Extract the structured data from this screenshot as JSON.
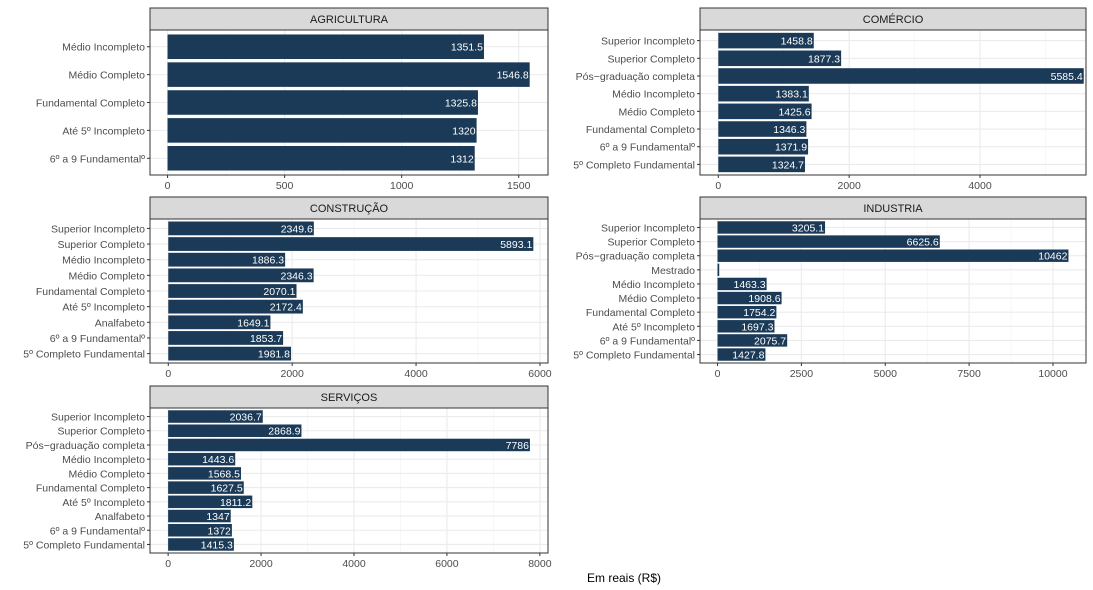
{
  "chart_data": {
    "type": "bar",
    "orientation": "horizontal",
    "xlabel": "Em reais (R$)",
    "ylabel": "",
    "grid": true,
    "colors": {
      "bar": "#1b3a57",
      "strip": "#d9d9d9",
      "panel_border": "#333333",
      "grid_major": "#ebebeb",
      "bar_text": "#ffffff"
    },
    "panels": [
      {
        "title": "AGRICULTURA",
        "categories": [
          "Médio Incompleto",
          "Médio Completo",
          "Fundamental Completo",
          "Até 5º Incompleto",
          "6º a 9 Fundamentalº"
        ],
        "values": [
          1351.5,
          1546.8,
          1325.8,
          1320,
          1312
        ],
        "value_labels": [
          "1351.5",
          "1546.8",
          "1325.8",
          "1320",
          "1312"
        ],
        "xlim": [
          -75,
          1625
        ],
        "xticks": [
          0,
          500,
          1000,
          1500
        ],
        "xtick_labels": [
          "0",
          "500",
          "1000",
          "1500"
        ]
      },
      {
        "title": "COMÉRCIO",
        "categories": [
          "Superior Incompleto",
          "Superior Completo",
          "Pós−graduação completa",
          "Médio Incompleto",
          "Médio Completo",
          "Fundamental Completo",
          "6º a 9 Fundamentalº",
          "5º Completo Fundamental"
        ],
        "values": [
          1458.8,
          1877.3,
          5585.4,
          1383.1,
          1425.6,
          1346.3,
          1371.9,
          1324.7
        ],
        "value_labels": [
          "1458.8",
          "1877.3",
          "5585.4",
          "1383.1",
          "1425.6",
          "1346.3",
          "1371.9",
          "1324.7"
        ],
        "xlim": [
          -280,
          5620
        ],
        "xticks": [
          0,
          2000,
          4000
        ],
        "xtick_labels": [
          "0",
          "2000",
          "4000"
        ]
      },
      {
        "title": "CONSTRUÇÃO",
        "categories": [
          "Superior Incompleto",
          "Superior Completo",
          "Médio Incompleto",
          "Médio Completo",
          "Fundamental Completo",
          "Até 5º Incompleto",
          "Analfabeto",
          "6º a 9 Fundamentalº",
          "5º Completo Fundamental"
        ],
        "values": [
          2349.6,
          5893.1,
          1886.3,
          2346.3,
          2070.1,
          2172.4,
          1649.1,
          1853.7,
          1981.8
        ],
        "value_labels": [
          "2349.6",
          "5893.1",
          "1886.3",
          "2346.3",
          "2070.1",
          "2172.4",
          "1649.1",
          "1853.7",
          "1981.8"
        ],
        "xlim": [
          -295,
          6130
        ],
        "xticks": [
          0,
          2000,
          4000,
          6000
        ],
        "xtick_labels": [
          "0",
          "2000",
          "4000",
          "6000"
        ]
      },
      {
        "title": "INDUSTRIA",
        "categories": [
          "Superior Incompleto",
          "Superior Completo",
          "Pós−graduação completa",
          "Mestrado",
          "Médio Incompleto",
          "Médio Completo",
          "Fundamental Completo",
          "Até 5º Incompleto",
          "6º a 9 Fundamentalº",
          "5º Completo Fundamental"
        ],
        "values": [
          3205.1,
          6625.6,
          10462,
          50,
          1463.3,
          1908.6,
          1754.2,
          1697.3,
          2075.7,
          1427.8
        ],
        "value_labels": [
          "3205.1",
          "6625.6",
          "10462",
          "",
          "1463.3",
          "1908.6",
          "1754.2",
          "1697.3",
          "2075.7",
          "1427.8"
        ],
        "xlim": [
          -523,
          10985
        ],
        "xticks": [
          0,
          2500,
          5000,
          7500,
          10000
        ],
        "xtick_labels": [
          "0",
          "2500",
          "5000",
          "7500",
          "10000"
        ]
      },
      {
        "title": "SERVIÇOS",
        "categories": [
          "Superior Incompleto",
          "Superior Completo",
          "Pós−graduação completa",
          "Médio Incompleto",
          "Médio Completo",
          "Fundamental Completo",
          "Até 5º Incompleto",
          "Analfabeto",
          "6º a 9 Fundamentalº",
          "5º Completo Fundamental"
        ],
        "values": [
          2036.7,
          2868.9,
          7786,
          1443.6,
          1568.5,
          1627.5,
          1811.2,
          1347,
          1372,
          1415.3
        ],
        "value_labels": [
          "2036.7",
          "2868.9",
          "7786",
          "1443.6",
          "1568.5",
          "1627.5",
          "1811.2",
          "1347",
          "1372",
          "1415.3"
        ],
        "xlim": [
          -390,
          8175
        ],
        "xticks": [
          0,
          2000,
          4000,
          6000,
          8000
        ],
        "xtick_labels": [
          "0",
          "2000",
          "4000",
          "6000",
          "8000"
        ]
      }
    ]
  }
}
